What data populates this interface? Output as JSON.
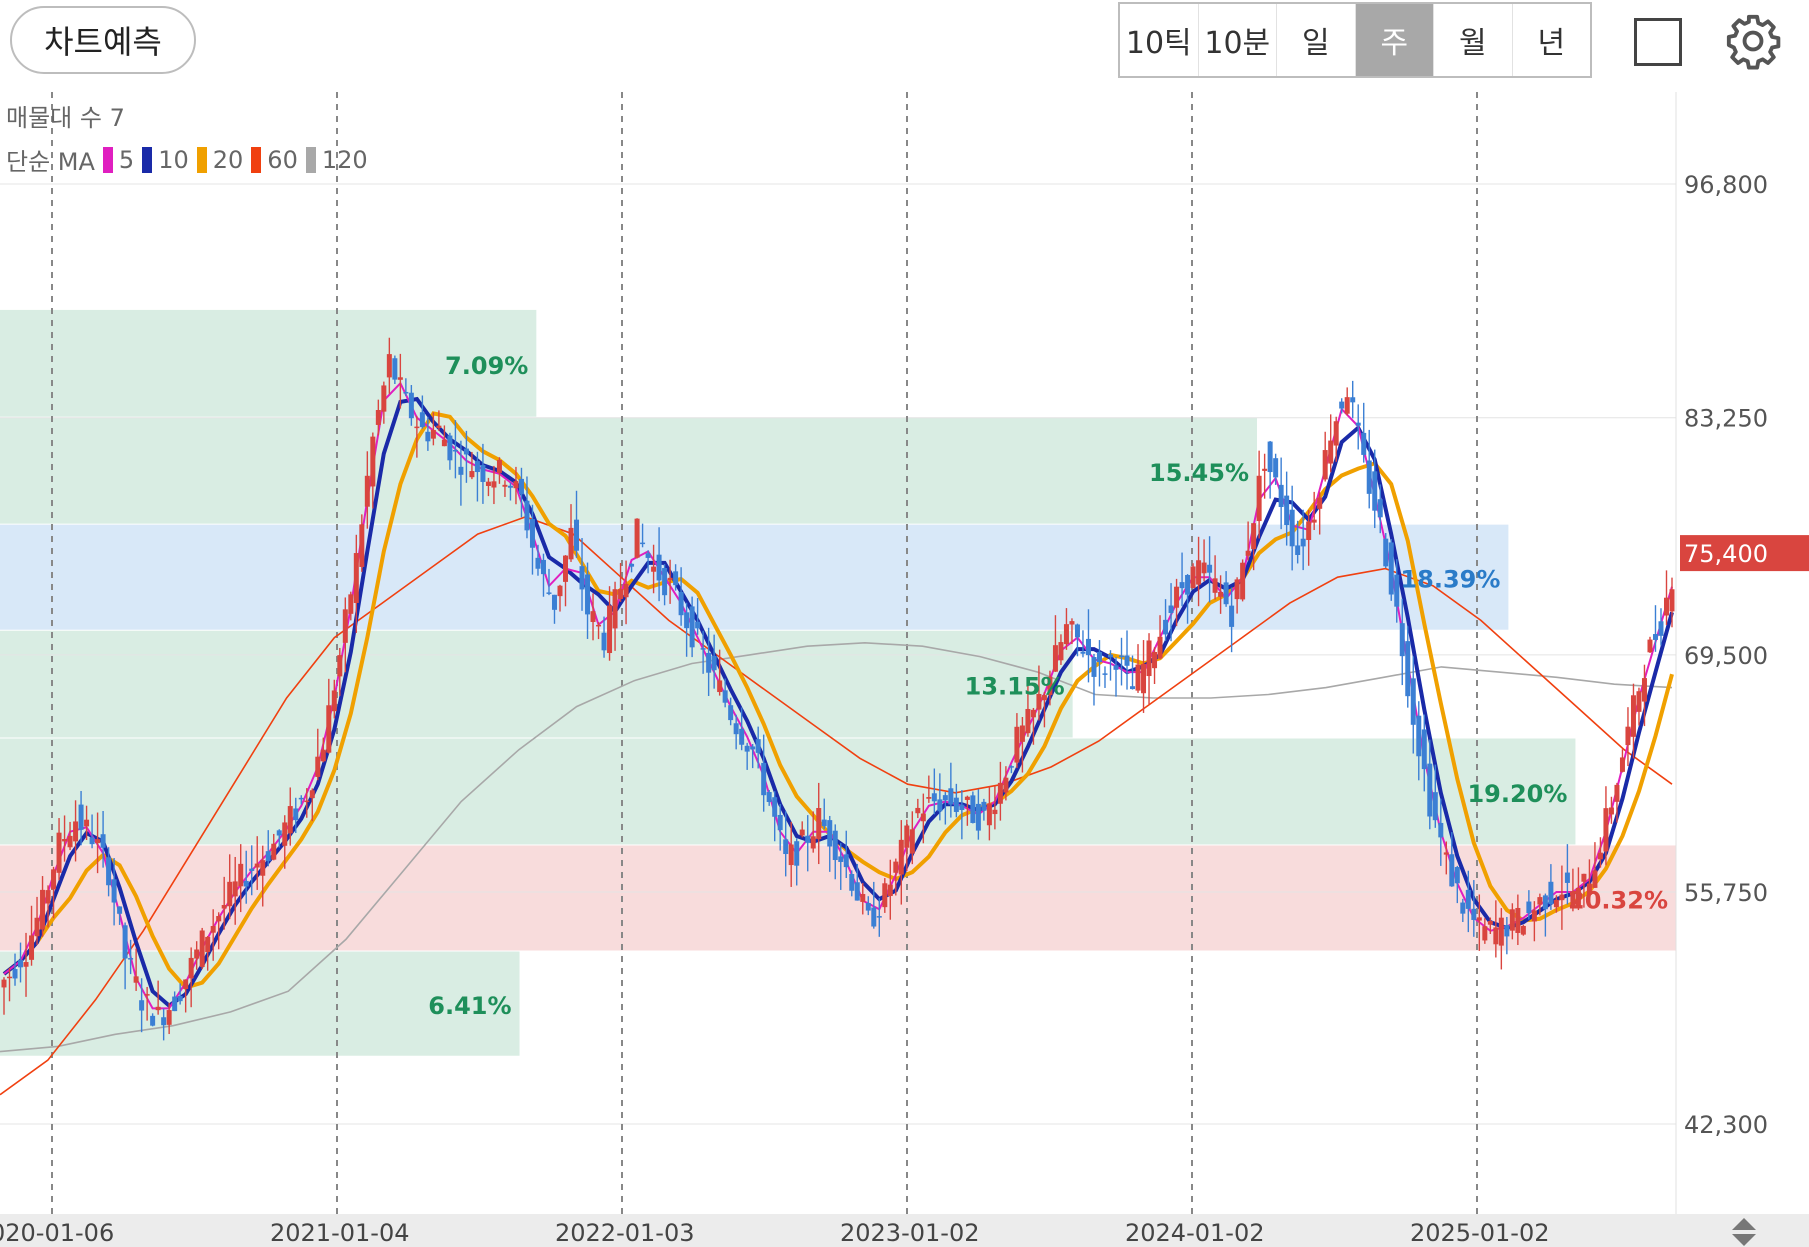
{
  "toolbar": {
    "predict_label": "차트예측",
    "periods": [
      "10틱",
      "10분",
      "일",
      "주",
      "월",
      "년"
    ],
    "active_period": "주"
  },
  "indicators": {
    "volume_profile_label": "매물대 수 7",
    "ma_label": "단순 MA",
    "ma_lines": [
      {
        "period": "5",
        "color": "#e01fc0"
      },
      {
        "period": "10",
        "color": "#1a2aa8"
      },
      {
        "period": "20",
        "color": "#f0a000"
      },
      {
        "period": "60",
        "color": "#f04010"
      },
      {
        "period": "120",
        "color": "#a8a8a8"
      }
    ]
  },
  "chart_data": {
    "type": "candlestick",
    "y_axis": {
      "ticks": [
        "96,800",
        "83,250",
        "69,500",
        "55,750",
        "42,300"
      ],
      "tick_values": [
        96800,
        83250,
        69500,
        55750,
        42300
      ]
    },
    "x_axis": {
      "ticks": [
        "020-01-06",
        "2021-01-04",
        "2022-01-03",
        "2023-01-02",
        "2024-01-02",
        "2025-01-02"
      ]
    },
    "current_price": {
      "label": "75,400",
      "value": 75400,
      "color": "#d9453f"
    },
    "volume_profile": [
      {
        "from": 83250,
        "to": 89500,
        "pct": "7.09%",
        "color": "#d9ede3",
        "label_color": "#1e8f5a",
        "volume": 0.32
      },
      {
        "from": 77050,
        "to": 83250,
        "pct": "15.45%",
        "color": "#d9ede3",
        "label_color": "#1e8f5a",
        "volume": 0.75
      },
      {
        "from": 70900,
        "to": 77050,
        "pct": "18.39%",
        "color": "#d8e8f8",
        "label_color": "#2a7bc8",
        "volume": 0.9
      },
      {
        "from": 64650,
        "to": 70900,
        "pct": "13.15%",
        "color": "#d9ede3",
        "label_color": "#1e8f5a",
        "volume": 0.64
      },
      {
        "from": 58450,
        "to": 64650,
        "pct": "19.20%",
        "color": "#d9ede3",
        "label_color": "#1e8f5a",
        "volume": 0.94
      },
      {
        "from": 52300,
        "to": 58450,
        "pct": "20.32%",
        "color": "#f8dcdc",
        "label_color": "#d9453f",
        "volume": 1.0
      },
      {
        "from": 46200,
        "to": 52300,
        "pct": "6.41%",
        "color": "#d9ede3",
        "label_color": "#1e8f5a",
        "volume": 0.31
      }
    ],
    "close_series_weekly_approx": [
      51000,
      52500,
      55000,
      58500,
      60000,
      59000,
      57000,
      52000,
      49500,
      48500,
      49500,
      51500,
      53500,
      55000,
      56500,
      57500,
      58500,
      60000,
      61500,
      64500,
      69500,
      75000,
      82000,
      86500,
      84000,
      82500,
      82500,
      81000,
      80500,
      80000,
      80000,
      78500,
      74500,
      72500,
      76500,
      72000,
      70500,
      73500,
      76500,
      74500,
      73500,
      71500,
      69500,
      67500,
      65500,
      64000,
      61000,
      57500,
      58500,
      60000,
      58500,
      56500,
      54000,
      55500,
      58000,
      60500,
      61000,
      61000,
      60500,
      60000,
      62000,
      64500,
      66000,
      68500,
      71000,
      70000,
      68500,
      69500,
      67500,
      69500,
      71500,
      73500,
      74500,
      73500,
      72000,
      76000,
      81000,
      78500,
      75500,
      78000,
      82500,
      85000,
      80500,
      77000,
      72000,
      66000,
      61000,
      57500,
      55000,
      53500,
      53500,
      54000,
      54500,
      55500,
      56000,
      55500,
      57500,
      61000,
      65000,
      69000,
      71500,
      75400
    ],
    "ma_series_approx": {
      "ma60": [
        44000,
        46000,
        49500,
        53500,
        58000,
        62500,
        67000,
        70500,
        72500,
        74500,
        76500,
        77500,
        76500,
        74000,
        71500,
        69500,
        67500,
        65500,
        63500,
        62000,
        61500,
        62000,
        63000,
        64500,
        66500,
        68500,
        70500,
        72500,
        74000,
        74500,
        73500,
        71500,
        69000,
        66500,
        64000,
        62000
      ],
      "ma120": [
        46500,
        46800,
        47500,
        48000,
        48800,
        50000,
        53000,
        57000,
        61000,
        64000,
        66500,
        68000,
        69000,
        69500,
        70000,
        70200,
        70000,
        69400,
        68500,
        67200,
        67000,
        67000,
        67200,
        67600,
        68200,
        68800,
        68500,
        68200,
        67800,
        67600
      ]
    }
  }
}
